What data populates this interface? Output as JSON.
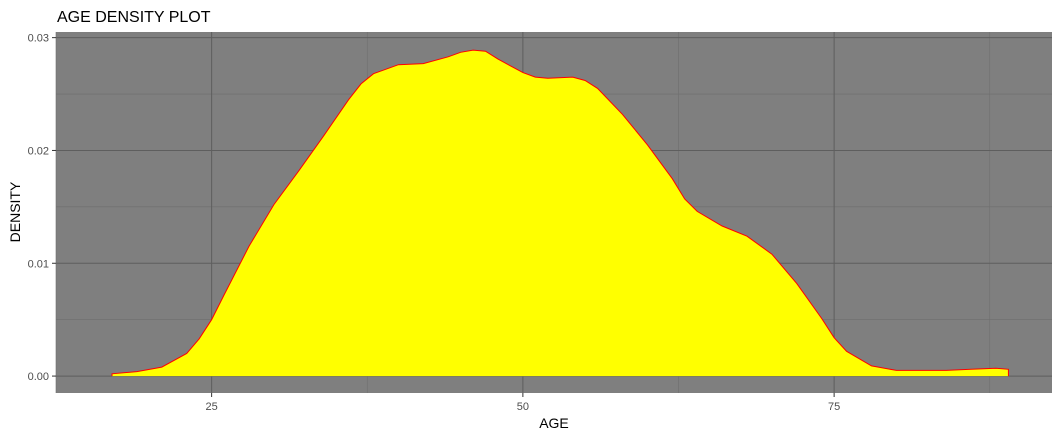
{
  "chart_data": {
    "type": "area",
    "title": "AGE DENSITY PLOT",
    "xlabel": "AGE",
    "ylabel": "DENSITY",
    "xlim": [
      12.5,
      92.5
    ],
    "ylim": [
      -0.0015,
      0.0305
    ],
    "x_ticks": [
      25,
      50,
      75
    ],
    "x_tick_labels": [
      "25",
      "50",
      "75"
    ],
    "y_ticks": [
      0,
      0.01,
      0.02,
      0.03
    ],
    "y_tick_labels": [
      "0.00",
      "0.01",
      "0.02",
      "0.03"
    ],
    "grid": true,
    "legend": "none",
    "colors": {
      "panel_background": "#7f7f7f",
      "grid_major": "#5e5e5e",
      "grid_minor": "#6e6e6e",
      "fill": "#ffff00",
      "outline": "#ff0000",
      "tick_mark": "#333333"
    },
    "series": [
      {
        "x": [
          17,
          19,
          21,
          23,
          24,
          25,
          26,
          28,
          30,
          32,
          34,
          36,
          37,
          38,
          40,
          42,
          44,
          45,
          46,
          47,
          48,
          50,
          51,
          52,
          54,
          55,
          56,
          58,
          60,
          62,
          63,
          64,
          66,
          68,
          70,
          72,
          74,
          75,
          76,
          78,
          80,
          82,
          84,
          86,
          88,
          89
        ],
        "y": [
          0.0002,
          0.0004,
          0.0008,
          0.002,
          0.0033,
          0.005,
          0.0072,
          0.0115,
          0.0152,
          0.0182,
          0.0213,
          0.0245,
          0.0259,
          0.0268,
          0.0276,
          0.0277,
          0.0283,
          0.0287,
          0.0289,
          0.0288,
          0.0281,
          0.0269,
          0.0265,
          0.0264,
          0.0265,
          0.0262,
          0.0255,
          0.0232,
          0.0205,
          0.0175,
          0.0157,
          0.0146,
          0.0133,
          0.0124,
          0.0108,
          0.0082,
          0.0051,
          0.0034,
          0.0022,
          0.0009,
          0.0005,
          0.0005,
          0.0005,
          0.0006,
          0.0007,
          0.0006
        ]
      }
    ]
  }
}
